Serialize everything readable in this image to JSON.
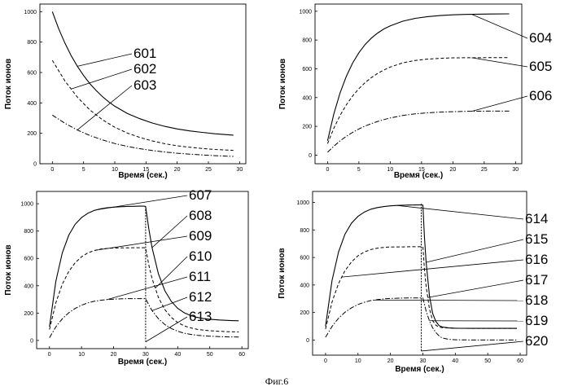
{
  "figure": {
    "caption": "Фиг.6"
  },
  "chart_data": [
    {
      "type": "line",
      "id": "tl",
      "xlabel": "Время (сек.)",
      "ylabel": "Поток ионов",
      "xlim": [
        -2,
        31
      ],
      "ylim": [
        0,
        1050
      ],
      "xticks": [
        0,
        5,
        10,
        15,
        20,
        25,
        30
      ],
      "yticks": [
        0,
        200,
        400,
        600,
        800,
        1000
      ],
      "series": [
        {
          "name": "601",
          "style": "solid",
          "x": [
            0,
            1,
            2,
            3,
            4,
            5,
            6,
            7,
            8,
            9,
            10,
            12,
            14,
            16,
            18,
            20,
            22,
            24,
            26,
            29
          ],
          "y": [
            1000,
            889,
            794,
            712,
            641,
            580,
            527,
            482,
            442,
            408,
            378,
            331,
            296,
            268,
            246,
            229,
            216,
            206,
            197,
            188
          ]
        },
        {
          "name": "602",
          "style": "dashed",
          "x": [
            0,
            2,
            4,
            6,
            8,
            10,
            12,
            14,
            16,
            18,
            20,
            22,
            24,
            26,
            29
          ],
          "y": [
            680,
            545,
            438,
            354,
            290,
            240,
            202,
            173,
            150,
            132,
            118,
            108,
            100,
            94,
            88
          ]
        },
        {
          "name": "603",
          "style": "dashdot",
          "x": [
            0,
            2,
            4,
            6,
            8,
            10,
            12,
            14,
            16,
            18,
            20,
            22,
            24,
            26,
            29
          ],
          "y": [
            320,
            266,
            222,
            186,
            157,
            133,
            114,
            99,
            87,
            77,
            69,
            63,
            58,
            53,
            48
          ]
        }
      ],
      "callouts": [
        {
          "label": "601",
          "series": "601",
          "at_x": 4
        },
        {
          "label": "602",
          "series": "602",
          "at_x": 3
        },
        {
          "label": "603",
          "series": "603",
          "at_x": 4
        }
      ]
    },
    {
      "type": "line",
      "id": "tr",
      "xlabel": "Время (сек.)",
      "ylabel": "Поток ионов",
      "xlim": [
        -2,
        31
      ],
      "ylim": [
        -60,
        1050
      ],
      "xticks": [
        0,
        5,
        10,
        15,
        20,
        25,
        30
      ],
      "yticks": [
        0,
        200,
        400,
        600,
        800,
        1000
      ],
      "series": [
        {
          "name": "604",
          "style": "solid",
          "x": [
            0,
            1,
            2,
            3,
            4,
            5,
            6,
            7,
            8,
            9,
            10,
            12,
            14,
            16,
            18,
            20,
            22,
            24,
            26,
            29
          ],
          "y": [
            100,
            286,
            433,
            548,
            640,
            712,
            769,
            814,
            849,
            877,
            899,
            931,
            951,
            963,
            970,
            975,
            978,
            980,
            981,
            982
          ]
        },
        {
          "name": "605",
          "style": "dashed",
          "x": [
            0,
            1,
            2,
            3,
            4,
            5,
            6,
            7,
            8,
            9,
            10,
            12,
            14,
            16,
            18,
            20,
            22,
            24,
            26,
            29
          ],
          "y": [
            80,
            187,
            276,
            350,
            411,
            462,
            504,
            539,
            568,
            592,
            612,
            641,
            658,
            668,
            673,
            676,
            677,
            677,
            678,
            678
          ]
        },
        {
          "name": "606",
          "style": "dashdot",
          "x": [
            0,
            1,
            2,
            3,
            4,
            5,
            6,
            7,
            8,
            9,
            10,
            12,
            14,
            16,
            18,
            20,
            22,
            24,
            26,
            29
          ],
          "y": [
            20,
            62,
            99,
            131,
            158,
            182,
            202,
            219,
            234,
            247,
            258,
            275,
            287,
            294,
            299,
            302,
            304,
            305,
            306,
            306
          ]
        }
      ],
      "callouts": [
        {
          "label": "604",
          "series": "604",
          "at_x": 23
        },
        {
          "label": "605",
          "series": "605",
          "at_x": 23
        },
        {
          "label": "606",
          "series": "606",
          "at_x": 23
        }
      ]
    },
    {
      "type": "line",
      "id": "bl",
      "xlabel": "Время (сек.)",
      "ylabel": "Поток ионов",
      "xlim": [
        -4,
        62
      ],
      "ylim": [
        -60,
        1090
      ],
      "xticks": [
        0,
        10,
        20,
        30,
        40,
        50,
        60
      ],
      "yticks": [
        0,
        200,
        400,
        600,
        800,
        1000
      ],
      "series": [
        {
          "name": "solid",
          "style": "solid",
          "x": [
            0,
            2,
            4,
            6,
            8,
            10,
            12,
            14,
            16,
            18,
            20,
            22,
            24,
            26,
            28,
            29.5,
            30,
            31,
            32,
            34,
            36,
            38,
            40,
            42,
            44,
            46,
            48,
            50,
            53,
            56,
            59
          ],
          "y": [
            100,
            433,
            640,
            769,
            849,
            899,
            931,
            951,
            963,
            970,
            975,
            978,
            980,
            981,
            982,
            982,
            980,
            813,
            679,
            485,
            363,
            285,
            235,
            203,
            182,
            169,
            160,
            155,
            150,
            146,
            144
          ]
        },
        {
          "name": "dashed",
          "style": "dashed",
          "x": [
            0,
            2,
            4,
            6,
            8,
            10,
            12,
            14,
            16,
            18,
            20,
            22,
            24,
            26,
            28,
            29.5,
            30,
            31,
            32,
            34,
            36,
            38,
            40,
            42,
            44,
            46,
            48,
            50,
            53,
            56,
            59
          ],
          "y": [
            80,
            276,
            411,
            504,
            568,
            612,
            641,
            658,
            668,
            673,
            676,
            677,
            677,
            678,
            678,
            678,
            678,
            549,
            453,
            313,
            225,
            168,
            131,
            107,
            92,
            82,
            75,
            71,
            67,
            64,
            62
          ]
        },
        {
          "name": "dashdot",
          "style": "dashdot",
          "x": [
            0,
            2,
            4,
            6,
            8,
            10,
            12,
            14,
            16,
            18,
            20,
            22,
            24,
            26,
            28,
            29.5,
            30,
            31,
            32,
            34,
            36,
            38,
            40,
            42,
            44,
            46,
            48,
            50,
            53,
            56,
            59
          ],
          "y": [
            20,
            99,
            158,
            202,
            234,
            258,
            275,
            287,
            294,
            299,
            302,
            304,
            305,
            306,
            306,
            306,
            305,
            258,
            218,
            158,
            116,
            87,
            67,
            53,
            44,
            38,
            34,
            31,
            28,
            26,
            25
          ]
        },
        {
          "name": "drop",
          "style": "dotted",
          "x": [
            30,
            30
          ],
          "y": [
            980,
            -10
          ]
        }
      ],
      "callouts": [
        {
          "label": "607",
          "series": "solid",
          "at_x": 15
        },
        {
          "label": "608",
          "series": "solid",
          "at_x": 32
        },
        {
          "label": "609",
          "series": "dashed",
          "at_x": 14
        },
        {
          "label": "610",
          "series": "dashed",
          "at_x": 33
        },
        {
          "label": "611",
          "series": "dashdot",
          "at_x": 18
        },
        {
          "label": "612",
          "series": "dashdot",
          "at_x": 32
        },
        {
          "label": "613",
          "series": "drop",
          "at_x": 30,
          "at_y": -10
        }
      ]
    },
    {
      "type": "line",
      "id": "br",
      "xlabel": "Время (сек.)",
      "ylabel": "Поток ионов",
      "xlim": [
        -4,
        62
      ],
      "ylim": [
        -110,
        1080
      ],
      "xticks": [
        0,
        10,
        20,
        30,
        40,
        50,
        60
      ],
      "yticks": [
        0,
        200,
        400,
        600,
        800,
        1000
      ],
      "series": [
        {
          "name": "solid",
          "style": "solid",
          "x": [
            0,
            2,
            4,
            6,
            8,
            10,
            12,
            14,
            16,
            18,
            20,
            22,
            24,
            26,
            28,
            29.5,
            30,
            30.5,
            31,
            32,
            33,
            34,
            35,
            36,
            38,
            40,
            45,
            50,
            55,
            59
          ],
          "y": [
            100,
            433,
            640,
            769,
            849,
            899,
            931,
            951,
            963,
            970,
            975,
            978,
            980,
            981,
            982,
            982,
            980,
            741,
            565,
            325,
            195,
            135,
            105,
            95,
            88,
            86,
            85,
            85,
            85,
            85
          ]
        },
        {
          "name": "dashed",
          "style": "dashed",
          "x": [
            0,
            2,
            4,
            6,
            8,
            10,
            12,
            14,
            16,
            18,
            20,
            22,
            24,
            26,
            28,
            29.5,
            30,
            30.5,
            31,
            32,
            33,
            34,
            35,
            36,
            38,
            40,
            45,
            50,
            55,
            59
          ],
          "y": [
            80,
            276,
            411,
            504,
            568,
            612,
            641,
            658,
            668,
            673,
            676,
            677,
            677,
            678,
            678,
            678,
            678,
            511,
            390,
            228,
            142,
            108,
            95,
            90,
            88,
            86,
            85,
            85,
            85,
            85
          ]
        },
        {
          "name": "dashdot",
          "style": "dashdot",
          "x": [
            0,
            2,
            4,
            6,
            8,
            10,
            12,
            14,
            16,
            18,
            20,
            22,
            24,
            26,
            28,
            29.5,
            30,
            31,
            32,
            33,
            34,
            35,
            36,
            38,
            40,
            45,
            50,
            55,
            59
          ],
          "y": [
            20,
            99,
            158,
            202,
            234,
            258,
            275,
            287,
            294,
            299,
            302,
            304,
            305,
            306,
            306,
            306,
            305,
            210,
            140,
            90,
            55,
            30,
            15,
            5,
            2,
            0,
            0,
            0,
            0
          ]
        },
        {
          "name": "drop",
          "style": "dotted",
          "x": [
            29.5,
            29.5
          ],
          "y": [
            990,
            -80
          ]
        }
      ],
      "callouts": [
        {
          "label": "614",
          "series": "solid",
          "at_x": 22
        },
        {
          "label": "615",
          "series": "solid",
          "at_x": 31
        },
        {
          "label": "616",
          "series": "dashed",
          "at_x": 5
        },
        {
          "label": "617",
          "series": "dashed",
          "at_x": 31.5
        },
        {
          "label": "618",
          "series": "dashdot",
          "at_x": 15
        },
        {
          "label": "619",
          "series": "dashdot",
          "at_x": 32
        },
        {
          "label": "620",
          "series": "drop",
          "at_x": 29.5,
          "at_y": -80
        }
      ]
    }
  ]
}
